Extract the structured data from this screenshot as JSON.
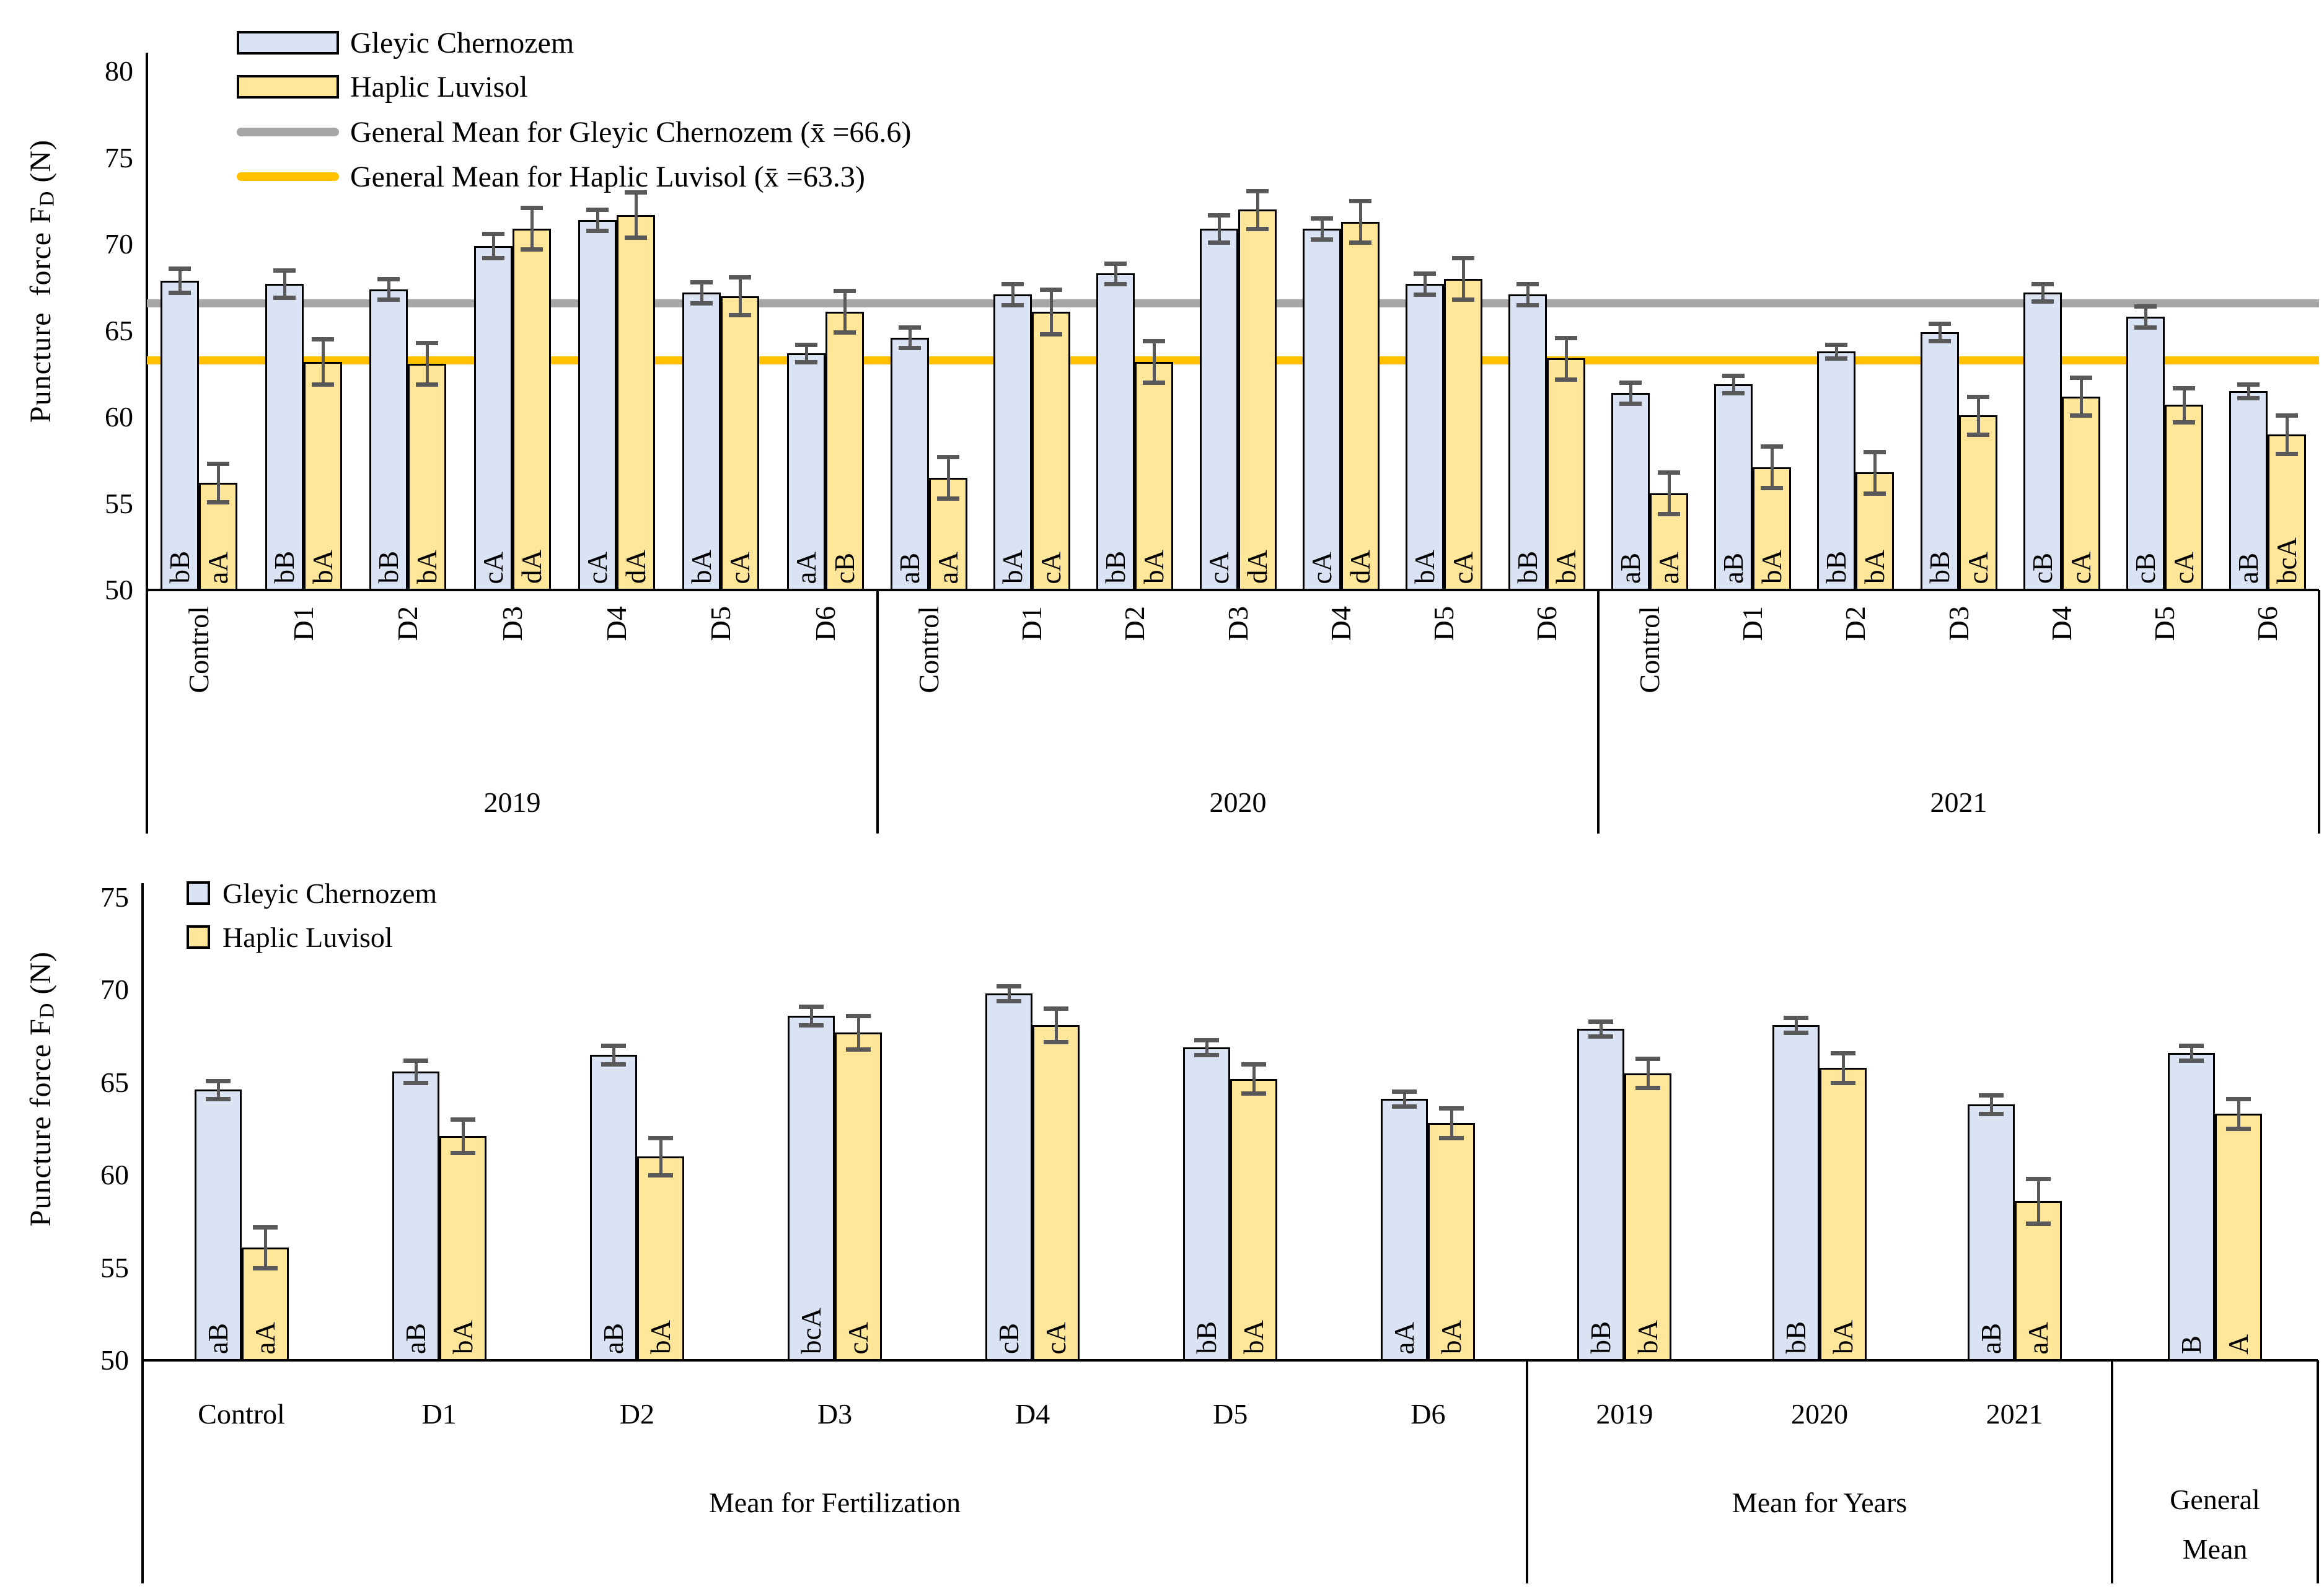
{
  "style": {
    "gc_fill": "#dae3f3",
    "hl_fill": "#ffe699",
    "bar_border": "#000000",
    "error_color": "#595959",
    "gray_line": "#a6a6a6",
    "orange_line": "#ffc000",
    "text_color": "#000000"
  },
  "chart_data": [
    {
      "type": "bar",
      "title": "",
      "ylabel": {
        "pre": "Puncture  force F",
        "sub": "D",
        "post": " (N)"
      },
      "ylim": [
        50,
        80
      ],
      "yticks": [
        80,
        75,
        70,
        65,
        60,
        55,
        50
      ],
      "grid": "off",
      "legend_position": "top-left-inside",
      "legend": [
        {
          "type": "patch",
          "color": "#dae3f3",
          "label": "Gleyic Chernozem"
        },
        {
          "type": "patch",
          "color": "#ffe699",
          "label": "Haplic Luvisol"
        },
        {
          "type": "line",
          "color": "#a6a6a6",
          "label": "General Mean for Gleyic Chernozem (x̄ =66.6)"
        },
        {
          "type": "line",
          "color": "#ffc000",
          "label": "General Mean for Haplic Luvisol (x̄ =63.3)"
        }
      ],
      "mean_lines": [
        {
          "name": "General Mean for Gleyic Chernozem",
          "value": 66.6,
          "color": "#a6a6a6"
        },
        {
          "name": "General Mean for Haplic Luvisol",
          "value": 63.3,
          "color": "#ffc000"
        }
      ],
      "groups": [
        {
          "label": "2019",
          "categories": [
            "Control",
            "D1",
            "D2",
            "D3",
            "D4",
            "D5",
            "D6"
          ],
          "series": [
            {
              "name": "Gleyic Chernozem",
              "values": [
                67.9,
                67.7,
                67.4,
                69.9,
                71.4,
                67.2,
                63.7
              ],
              "errors": [
                0.7,
                0.8,
                0.6,
                0.7,
                0.6,
                0.6,
                0.5
              ],
              "letters": [
                "bB",
                "bB",
                "bB",
                "cA",
                "cA",
                "bA",
                "aA"
              ]
            },
            {
              "name": "Haplic Luvisol",
              "values": [
                56.2,
                63.2,
                63.1,
                70.9,
                71.7,
                67.0,
                66.1
              ],
              "errors": [
                1.1,
                1.3,
                1.2,
                1.2,
                1.3,
                1.1,
                1.2
              ],
              "letters": [
                "aA",
                "bA",
                "bA",
                "dA",
                "dA",
                "cA",
                "cB"
              ]
            }
          ]
        },
        {
          "label": "2020",
          "categories": [
            "Control",
            "D1",
            "D2",
            "D3",
            "D4",
            "D5",
            "D6"
          ],
          "series": [
            {
              "name": "Gleyic Chernozem",
              "values": [
                64.6,
                67.1,
                68.3,
                70.9,
                70.9,
                67.7,
                67.1
              ],
              "errors": [
                0.6,
                0.6,
                0.6,
                0.8,
                0.6,
                0.6,
                0.6
              ],
              "letters": [
                "aB",
                "bA",
                "bB",
                "cA",
                "cA",
                "bA",
                "bB"
              ]
            },
            {
              "name": "Haplic Luvisol",
              "values": [
                56.5,
                66.1,
                63.2,
                72.0,
                71.3,
                68.0,
                63.4
              ],
              "errors": [
                1.2,
                1.3,
                1.2,
                1.1,
                1.2,
                1.2,
                1.2
              ],
              "letters": [
                "aA",
                "cA",
                "bA",
                "dA",
                "dA",
                "cA",
                "bA"
              ]
            }
          ]
        },
        {
          "label": "2021",
          "categories": [
            "Control",
            "D1",
            "D2",
            "D3",
            "D4",
            "D5",
            "D6"
          ],
          "series": [
            {
              "name": "Gleyic Chernozem",
              "values": [
                61.4,
                61.9,
                63.8,
                64.9,
                67.2,
                65.8,
                61.5
              ],
              "errors": [
                0.6,
                0.5,
                0.4,
                0.5,
                0.5,
                0.6,
                0.4
              ],
              "letters": [
                "aB",
                "aB",
                "bB",
                "bB",
                "cB",
                "cB",
                "aB"
              ]
            },
            {
              "name": "Haplic Luvisol",
              "values": [
                55.6,
                57.1,
                56.8,
                60.1,
                61.2,
                60.7,
                59.0
              ],
              "errors": [
                1.2,
                1.2,
                1.2,
                1.1,
                1.1,
                1.0,
                1.1
              ],
              "letters": [
                "aA",
                "bA",
                "bA",
                "cA",
                "cA",
                "cA",
                "bcA"
              ]
            }
          ]
        }
      ]
    },
    {
      "type": "bar",
      "title": "",
      "ylabel": {
        "pre": "Puncture force F",
        "sub": "D",
        "post": " (N)"
      },
      "ylim": [
        50,
        75
      ],
      "yticks": [
        75,
        70,
        65,
        60,
        55,
        50
      ],
      "grid": "off",
      "legend_position": "top-left-inside",
      "legend": [
        {
          "type": "patch",
          "color": "#dae3f3",
          "label": "Gleyic Chernozem"
        },
        {
          "type": "patch",
          "color": "#ffe699",
          "label": "Haplic Luvisol"
        }
      ],
      "sections": [
        {
          "label": "Mean for Fertilization",
          "categories": [
            "Control",
            "D1",
            "D2",
            "D3",
            "D4",
            "D5",
            "D6"
          ],
          "series": [
            {
              "name": "Gleyic Chernozem",
              "values": [
                64.6,
                65.6,
                66.5,
                68.6,
                69.8,
                66.9,
                64.1
              ],
              "errors": [
                0.5,
                0.6,
                0.5,
                0.5,
                0.4,
                0.4,
                0.4
              ],
              "letters": [
                "aB",
                "aB",
                "aB",
                "bcA",
                "cB",
                "bB",
                "aA"
              ]
            },
            {
              "name": "Haplic Luvisol",
              "values": [
                56.1,
                62.1,
                61.0,
                67.7,
                68.1,
                65.2,
                62.8
              ],
              "errors": [
                1.1,
                0.9,
                1.0,
                0.9,
                0.9,
                0.8,
                0.8
              ],
              "letters": [
                "aA",
                "bA",
                "bA",
                "cA",
                "cA",
                "bA",
                "bA"
              ]
            }
          ]
        },
        {
          "label": "Mean for Years",
          "categories": [
            "2019",
            "2020",
            "2021"
          ],
          "series": [
            {
              "name": "Gleyic Chernozem",
              "values": [
                67.9,
                68.1,
                63.8
              ],
              "errors": [
                0.4,
                0.4,
                0.5
              ],
              "letters": [
                "bB",
                "bB",
                "aB"
              ]
            },
            {
              "name": "Haplic Luvisol",
              "values": [
                65.5,
                65.8,
                58.6
              ],
              "errors": [
                0.8,
                0.8,
                1.2
              ],
              "letters": [
                "bA",
                "bA",
                "aA"
              ]
            }
          ]
        },
        {
          "label": "General Mean",
          "label_lines": [
            "General",
            "Mean"
          ],
          "categories": [
            ""
          ],
          "series": [
            {
              "name": "Gleyic Chernozem",
              "values": [
                66.6
              ],
              "errors": [
                0.4
              ],
              "letters": [
                "B"
              ]
            },
            {
              "name": "Haplic Luvisol",
              "values": [
                63.3
              ],
              "errors": [
                0.8
              ],
              "letters": [
                "A"
              ]
            }
          ]
        }
      ]
    }
  ]
}
